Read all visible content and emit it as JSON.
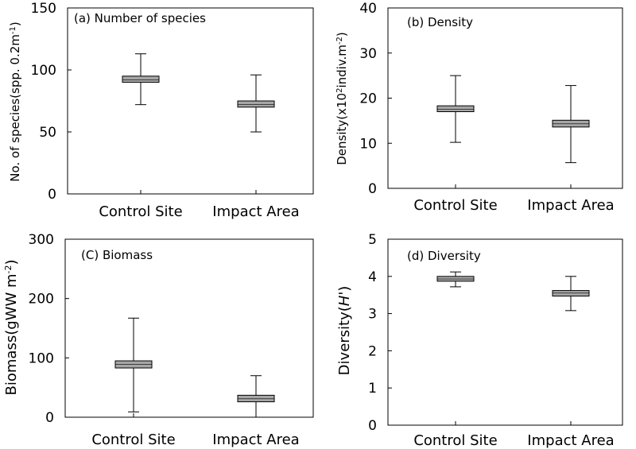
{
  "chart_data": [
    {
      "type": "box",
      "panel_label": "(a)  Number of species",
      "ylabel": "No. of species(spp. 0.2m",
      "ylabel_sup": "-1",
      "ylabel_tail": ")",
      "ylim": [
        0,
        150
      ],
      "yticks": [
        0,
        50,
        100,
        150
      ],
      "ytick_labels": [
        "0",
        "50",
        "100",
        "150"
      ],
      "categories": [
        "Control Site",
        "Impact Area"
      ],
      "series": [
        {
          "name": "Control Site",
          "low": 72,
          "q1": 90,
          "median": 92,
          "q3": 95,
          "high": 113
        },
        {
          "name": "Impact Area",
          "low": 50,
          "q1": 70,
          "median": 72,
          "q3": 75,
          "high": 96
        }
      ]
    },
    {
      "type": "box",
      "panel_label": "(b)  Density",
      "ylabel": "Density(x10",
      "ylabel_sup": "2",
      "ylabel_tail": "indiv.m",
      "ylabel_sup2": "-2",
      "ylabel_tail2": ")",
      "ylim": [
        0,
        40
      ],
      "yticks": [
        0,
        10,
        20,
        30,
        40
      ],
      "ytick_labels": [
        "0",
        "10",
        "20",
        "30",
        "40"
      ],
      "categories": [
        "Control Site",
        "Impact Area"
      ],
      "series": [
        {
          "name": "Control Site",
          "low": 10.2,
          "q1": 17,
          "median": 17.5,
          "q3": 18.3,
          "high": 25
        },
        {
          "name": "Impact Area",
          "low": 5.7,
          "q1": 13.6,
          "median": 14.3,
          "q3": 15.1,
          "high": 22.8
        }
      ]
    },
    {
      "type": "box",
      "panel_label": "(C)  Biomass",
      "ylabel": "Biomass(gWW m",
      "ylabel_sup": "-2",
      "ylabel_tail": ")",
      "ylim": [
        0,
        300
      ],
      "yticks": [
        0,
        100,
        200,
        300
      ],
      "ytick_labels": [
        "0",
        "100",
        "200",
        "300"
      ],
      "categories": [
        "Control Site",
        "Impact Area"
      ],
      "series": [
        {
          "name": "Control Site",
          "low": 9,
          "q1": 83,
          "median": 89,
          "q3": 95,
          "high": 167
        },
        {
          "name": "Impact Area",
          "low": 0,
          "q1": 26,
          "median": 31,
          "q3": 37,
          "high": 70
        }
      ]
    },
    {
      "type": "box",
      "panel_label": "(d)  Diversity",
      "ylabel": "Diversity(",
      "ylabel_italic": "H'",
      "ylabel_tail": ")",
      "ylim": [
        0,
        5
      ],
      "yticks": [
        0,
        1,
        2,
        3,
        4,
        5
      ],
      "ytick_labels": [
        "0",
        "1",
        "2",
        "3",
        "4",
        "5"
      ],
      "categories": [
        "Control Site",
        "Impact Area"
      ],
      "series": [
        {
          "name": "Control Site",
          "low": 3.72,
          "q1": 3.87,
          "median": 3.93,
          "q3": 4.0,
          "high": 4.12
        },
        {
          "name": "Impact Area",
          "low": 3.08,
          "q1": 3.47,
          "median": 3.55,
          "q3": 3.62,
          "high": 4.0
        }
      ]
    }
  ]
}
